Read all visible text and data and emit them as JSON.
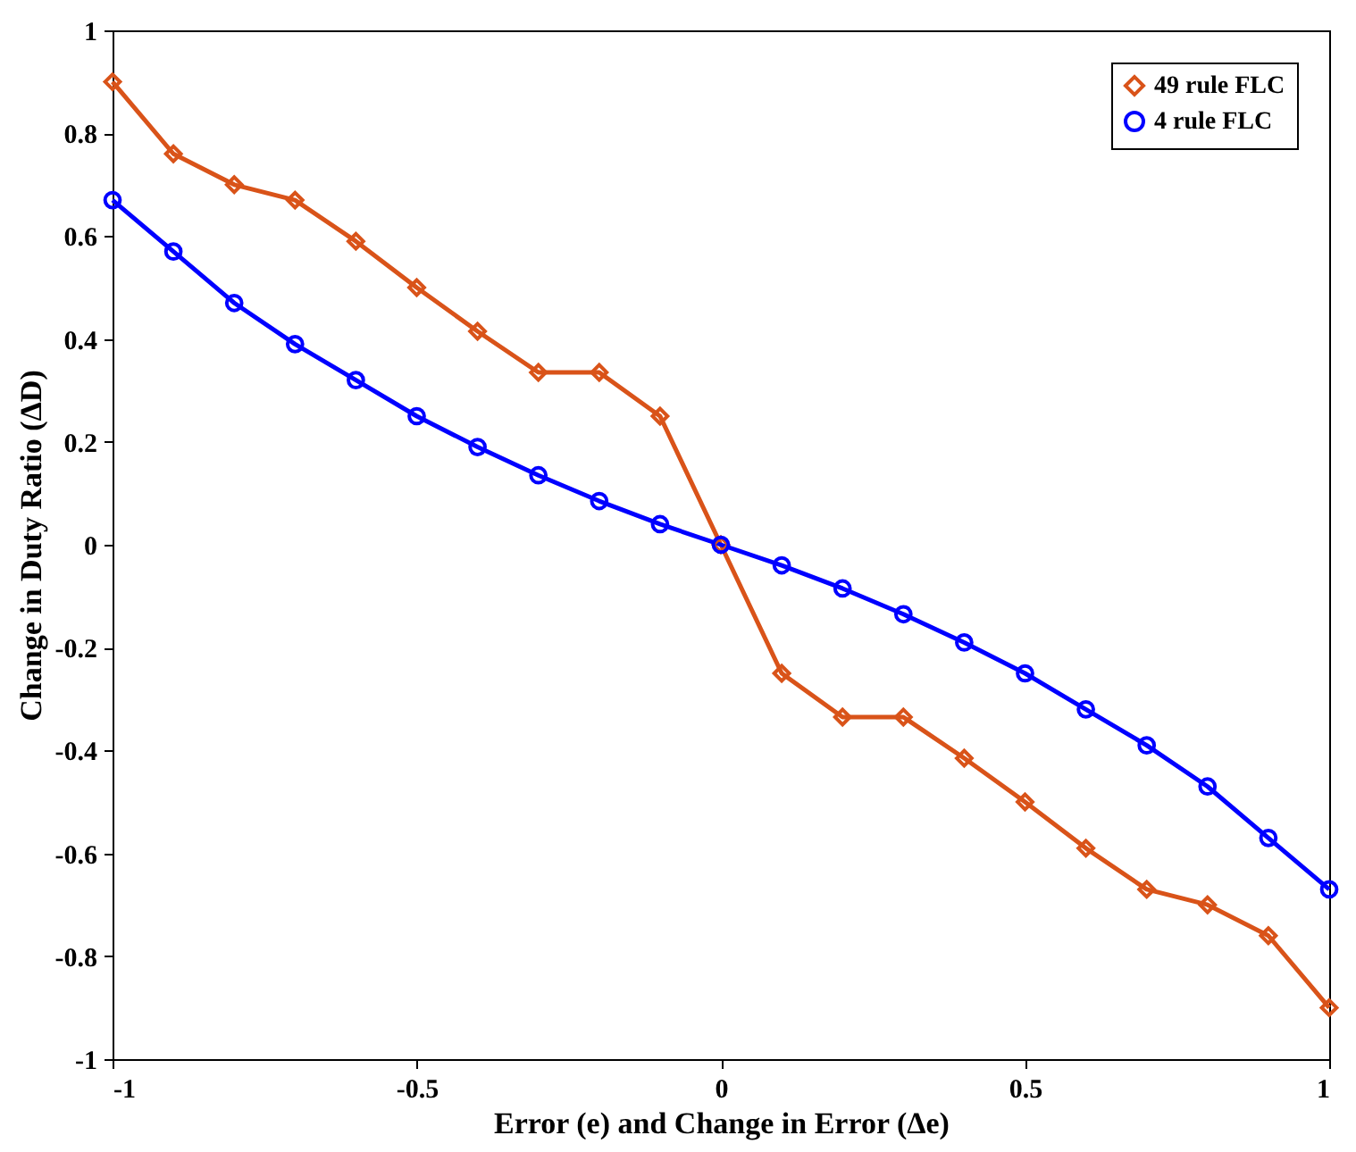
{
  "chart_data": {
    "type": "line",
    "xlabel": "Error (e) and Change in Error (Δe)",
    "ylabel": "Change in Duty Ratio (ΔD)",
    "x": [
      -1,
      -0.9,
      -0.8,
      -0.7,
      -0.6,
      -0.5,
      -0.4,
      -0.3,
      -0.2,
      -0.1,
      0,
      0.1,
      0.2,
      0.3,
      0.4,
      0.5,
      0.6,
      0.7,
      0.8,
      0.9,
      1
    ],
    "series": [
      {
        "name": "49 rule FLC",
        "color": "#d95319",
        "marker": "diamond",
        "values": [
          0.9,
          0.76,
          0.7,
          0.67,
          0.59,
          0.5,
          0.415,
          0.335,
          0.335,
          0.25,
          0,
          -0.25,
          -0.335,
          -0.335,
          -0.415,
          -0.5,
          -0.59,
          -0.67,
          -0.7,
          -0.76,
          -0.9
        ]
      },
      {
        "name": "4 rule FLC",
        "color": "#0000ff",
        "marker": "circle",
        "values": [
          0.67,
          0.57,
          0.47,
          0.39,
          0.32,
          0.25,
          0.19,
          0.135,
          0.085,
          0.04,
          0,
          -0.04,
          -0.085,
          -0.135,
          -0.19,
          -0.25,
          -0.32,
          -0.39,
          -0.47,
          -0.57,
          -0.67
        ]
      }
    ],
    "xlim": [
      -1,
      1
    ],
    "xticks": [
      -1,
      -0.5,
      0,
      0.5,
      1
    ],
    "ylim": [
      -1,
      1
    ],
    "yticks": [
      -1,
      -0.8,
      -0.6,
      -0.4,
      -0.2,
      0,
      0.2,
      0.4,
      0.6,
      0.8,
      1
    ],
    "legend": "top right",
    "line_style": "solid"
  }
}
